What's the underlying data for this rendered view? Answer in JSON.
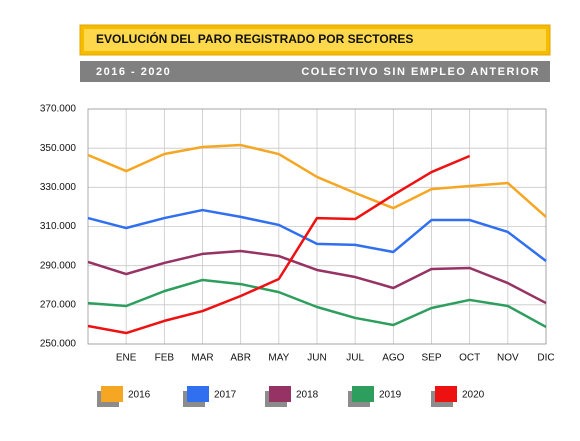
{
  "chart_data": {
    "type": "line",
    "title": "EVOLUCIÓN DEL PARO REGISTRADO POR SECTORES",
    "subtitle": "2016 - 2020",
    "subtitle_right": "COLECTIVO SIN EMPLEO ANTERIOR",
    "categories": [
      null,
      "ENE",
      "FEB",
      "MAR",
      "ABR",
      "MAY",
      "JUN",
      "JUL",
      "AGO",
      "SEP",
      "OCT",
      "NOV",
      "DIC"
    ],
    "series": [
      {
        "name": "2016",
        "color": "#f5a623",
        "values": [
          346500,
          338300,
          347000,
          350600,
          351600,
          347000,
          335300,
          327100,
          319400,
          329100,
          330700,
          332200,
          314900
        ]
      },
      {
        "name": "2017",
        "color": "#2f6ff0",
        "values": [
          314300,
          309200,
          314300,
          318400,
          314900,
          310800,
          301100,
          300600,
          297000,
          313300,
          313300,
          307200,
          292400
        ]
      },
      {
        "name": "2018",
        "color": "#963264",
        "values": [
          291900,
          285700,
          291400,
          296000,
          297500,
          294900,
          287800,
          284200,
          278600,
          288300,
          288800,
          281100,
          270900
        ]
      },
      {
        "name": "2019",
        "color": "#2e9e5e",
        "values": [
          270900,
          269400,
          277000,
          282700,
          280600,
          276500,
          268900,
          263300,
          259700,
          268400,
          272500,
          269400,
          258700
        ]
      },
      {
        "name": "2020",
        "color": "#ee1111",
        "values": [
          259200,
          255600,
          261800,
          266800,
          274500,
          283200,
          314300,
          313800,
          326100,
          337800,
          346000,
          null,
          null
        ]
      }
    ],
    "ylim": [
      250000,
      370000
    ],
    "yticks": [
      {
        "value": 250000,
        "label": "250.000"
      },
      {
        "value": 270000,
        "label": "270.000"
      },
      {
        "value": 290000,
        "label": "290.000"
      },
      {
        "value": 310000,
        "label": "310.000"
      },
      {
        "value": 330000,
        "label": "330.000"
      },
      {
        "value": 350000,
        "label": "350.000"
      },
      {
        "value": 370000,
        "label": "370.000"
      }
    ],
    "grid": true
  }
}
